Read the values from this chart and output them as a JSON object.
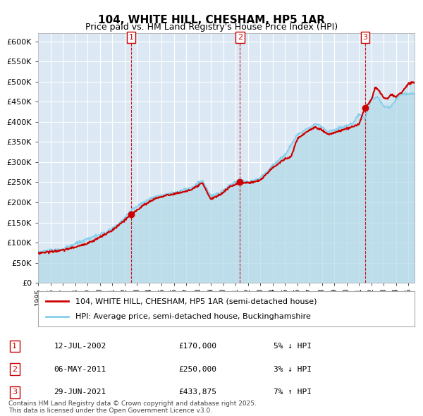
{
  "title": "104, WHITE HILL, CHESHAM, HP5 1AR",
  "subtitle": "Price paid vs. HM Land Registry's House Price Index (HPI)",
  "legend_line1": "104, WHITE HILL, CHESHAM, HP5 1AR (semi-detached house)",
  "legend_line2": "HPI: Average price, semi-detached house, Buckinghamshire",
  "footnote": "Contains HM Land Registry data © Crown copyright and database right 2025.\nThis data is licensed under the Open Government Licence v3.0.",
  "sale_points": [
    {
      "label": "1",
      "date": "12-JUL-2002",
      "price": 170000,
      "x": 2002.53,
      "pct": "5%",
      "direction": "↓"
    },
    {
      "label": "2",
      "date": "06-MAY-2011",
      "price": 250000,
      "x": 2011.35,
      "pct": "3%",
      "direction": "↓"
    },
    {
      "label": "3",
      "date": "29-JUN-2021",
      "price": 433875,
      "x": 2021.49,
      "pct": "7%",
      "direction": "↑"
    }
  ],
  "hpi_color": "#87CEEB",
  "price_color": "#CC0000",
  "bg_color": "#dce9f5",
  "plot_bg": "#dce9f5",
  "ylim": [
    0,
    620000
  ],
  "yticks": [
    0,
    50000,
    100000,
    150000,
    200000,
    250000,
    300000,
    350000,
    400000,
    450000,
    500000,
    550000,
    600000
  ],
  "xlim": [
    1995,
    2025.5
  ],
  "xticks": [
    1995,
    1996,
    1997,
    1998,
    1999,
    2000,
    2001,
    2002,
    2003,
    2004,
    2005,
    2006,
    2007,
    2008,
    2009,
    2010,
    2011,
    2012,
    2013,
    2014,
    2015,
    2016,
    2017,
    2018,
    2019,
    2020,
    2021,
    2022,
    2023,
    2024,
    2025
  ]
}
